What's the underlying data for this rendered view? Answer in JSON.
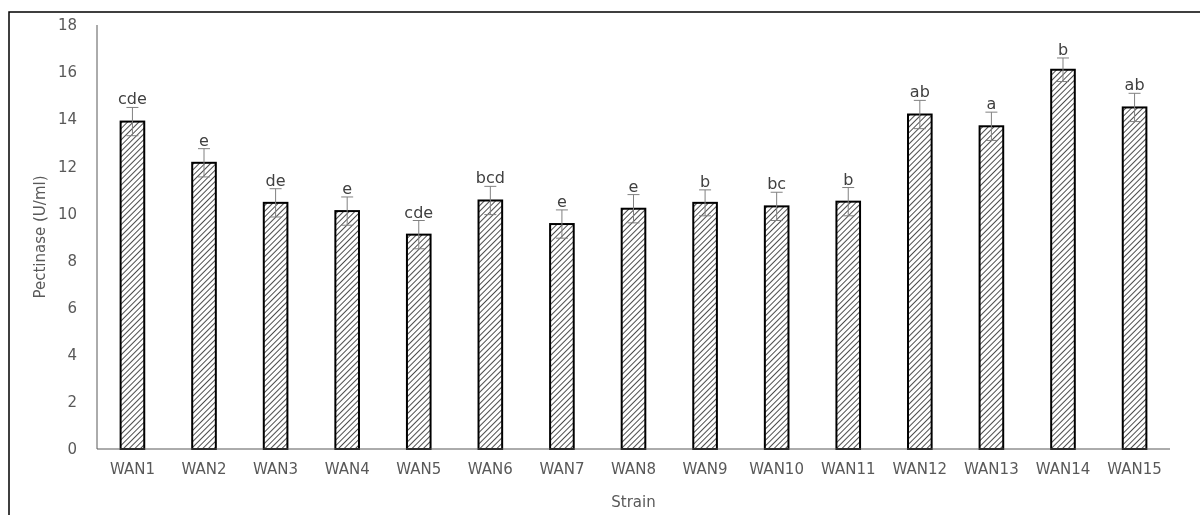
{
  "chart_data": {
    "type": "bar",
    "xlabel": "Strain",
    "ylabel": "Pectinase (U/ml)",
    "categories": [
      "WAN1",
      "WAN2",
      "WAN3",
      "WAN4",
      "WAN5",
      "WAN6",
      "WAN7",
      "WAN8",
      "WAN9",
      "WAN10",
      "WAN11",
      "WAN12",
      "WAN13",
      "WAN14",
      "WAN15"
    ],
    "values": [
      13.9,
      12.15,
      10.45,
      10.1,
      9.1,
      10.55,
      9.55,
      10.2,
      10.45,
      10.3,
      10.5,
      14.2,
      13.7,
      16.1,
      14.5
    ],
    "errors": [
      0.6,
      0.6,
      0.6,
      0.6,
      0.6,
      0.6,
      0.6,
      0.6,
      0.55,
      0.6,
      0.6,
      0.6,
      0.6,
      0.5,
      0.6
    ],
    "value_labels": [
      "cde",
      "e",
      "de",
      "e",
      "cde",
      "bcd",
      "e",
      "e",
      "b",
      "bc",
      "b",
      "ab",
      "a",
      "b",
      "ab"
    ],
    "color": "#000000",
    "ylim": [
      0,
      18
    ],
    "yticks": [
      0,
      2,
      4,
      6,
      8,
      10,
      12,
      14,
      16,
      18
    ],
    "grid": false
  }
}
